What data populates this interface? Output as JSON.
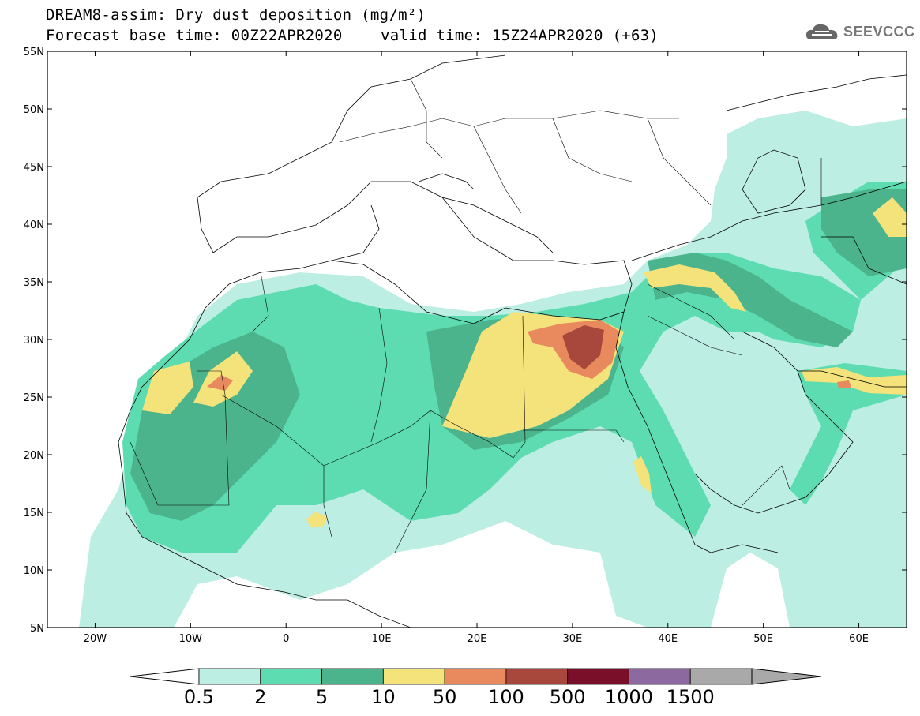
{
  "title_line1": "DREAM8-assim: Dry dust deposition (mg/m²)",
  "title_line2": "Forecast base time: 00Z22APR2020",
  "title_line2b": "valid time: 15Z24APR2020 (+63)",
  "logo_text": "SEEVCCC",
  "lat_labels": [
    "55N",
    "50N",
    "45N",
    "40N",
    "35N",
    "30N",
    "25N",
    "20N",
    "15N",
    "10N",
    "5N"
  ],
  "lon_labels": [
    "20W",
    "10W",
    "0",
    "10E",
    "20E",
    "30E",
    "40E",
    "50E",
    "60E"
  ],
  "colorbar": {
    "labels": [
      "0.5",
      "2",
      "5",
      "10",
      "50",
      "100",
      "500",
      "1000",
      "1500"
    ],
    "colors": [
      "#bdeee3",
      "#5cdcb0",
      "#4cb48c",
      "#f4e27a",
      "#e88a5e",
      "#a8473c",
      "#7a0f2a",
      "#8c6aa0",
      "#a9a9a9"
    ]
  },
  "map": {
    "lon_range": [
      -25,
      65
    ],
    "lat_range": [
      5,
      55
    ],
    "background": "#ffffff"
  }
}
